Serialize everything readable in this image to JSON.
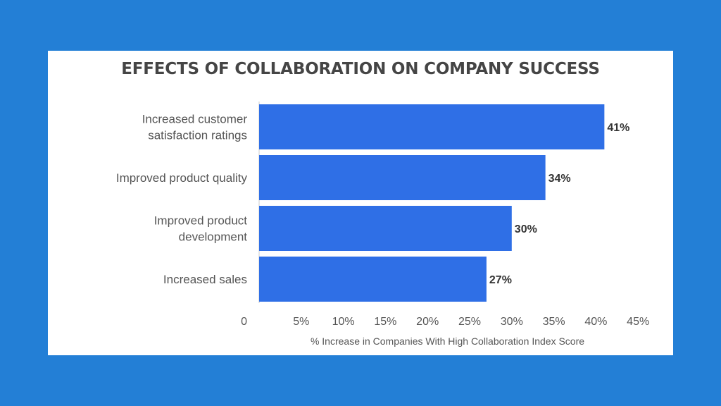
{
  "chart_data": {
    "type": "bar",
    "orientation": "horizontal",
    "title": "EFFECTS OF COLLABORATION ON COMPANY SUCCESS",
    "xlabel": "% Increase in Companies With High Collaboration Index Score",
    "ylabel": "",
    "categories": [
      [
        "Increased customer",
        "satisfaction ratings"
      ],
      [
        "Improved product quality"
      ],
      [
        "Improved product",
        "development"
      ],
      [
        "Increased sales"
      ]
    ],
    "values": [
      41,
      34,
      30,
      27
    ],
    "value_labels": [
      "41%",
      "34%",
      "30%",
      "27%"
    ],
    "xlim": [
      0,
      45
    ],
    "xticks": [
      0,
      5,
      10,
      15,
      20,
      25,
      30,
      35,
      40,
      45
    ],
    "xtick_labels": [
      "0",
      "5%",
      "10%",
      "15%",
      "20%",
      "25%",
      "30%",
      "35%",
      "40%",
      "45%"
    ],
    "grid": false,
    "colors": {
      "bar": "#2f6fe6",
      "axis": "#cccccc",
      "text": "#333333",
      "label": "#555555"
    }
  }
}
